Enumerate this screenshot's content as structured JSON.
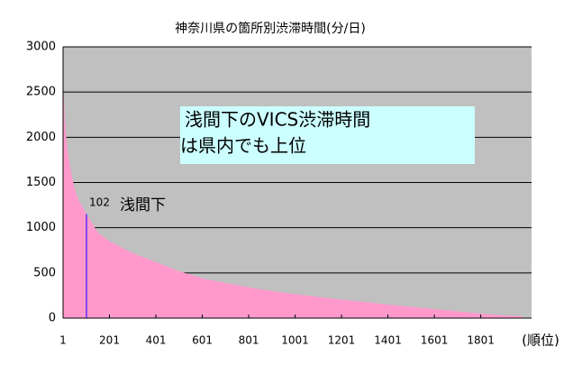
{
  "chart_data": {
    "type": "area",
    "title": "神奈川県の箇所別渋滞時間(分/日)",
    "x_label": "(順位)",
    "x": [
      1,
      10,
      20,
      40,
      60,
      80,
      102,
      150,
      201,
      300,
      401,
      500,
      601,
      700,
      801,
      900,
      1001,
      1100,
      1201,
      1300,
      1401,
      1500,
      1601,
      1700,
      1801,
      1900,
      1980
    ],
    "values": [
      2600,
      2150,
      1850,
      1550,
      1350,
      1250,
      1150,
      950,
      850,
      720,
      620,
      520,
      440,
      390,
      340,
      300,
      265,
      235,
      205,
      180,
      150,
      125,
      100,
      75,
      50,
      30,
      20
    ],
    "color": "#ff99cc",
    "plot_background": "#c0c0c0",
    "xlim": [
      1,
      2020
    ],
    "xticks": [
      1,
      201,
      401,
      601,
      801,
      1001,
      1201,
      1401,
      1601,
      1801
    ],
    "ylim": [
      0,
      3000
    ],
    "yticks": [
      0,
      500,
      1000,
      1500,
      2000,
      2500,
      3000
    ],
    "grid": true,
    "marker": {
      "x": 102,
      "value": 1150,
      "text": "浅間下",
      "color": "#0000ff"
    },
    "callout": {
      "lines": [
        "浅間下のVICS渋滞時間",
        "は県内でも上位"
      ],
      "color": "#ccffff"
    }
  }
}
